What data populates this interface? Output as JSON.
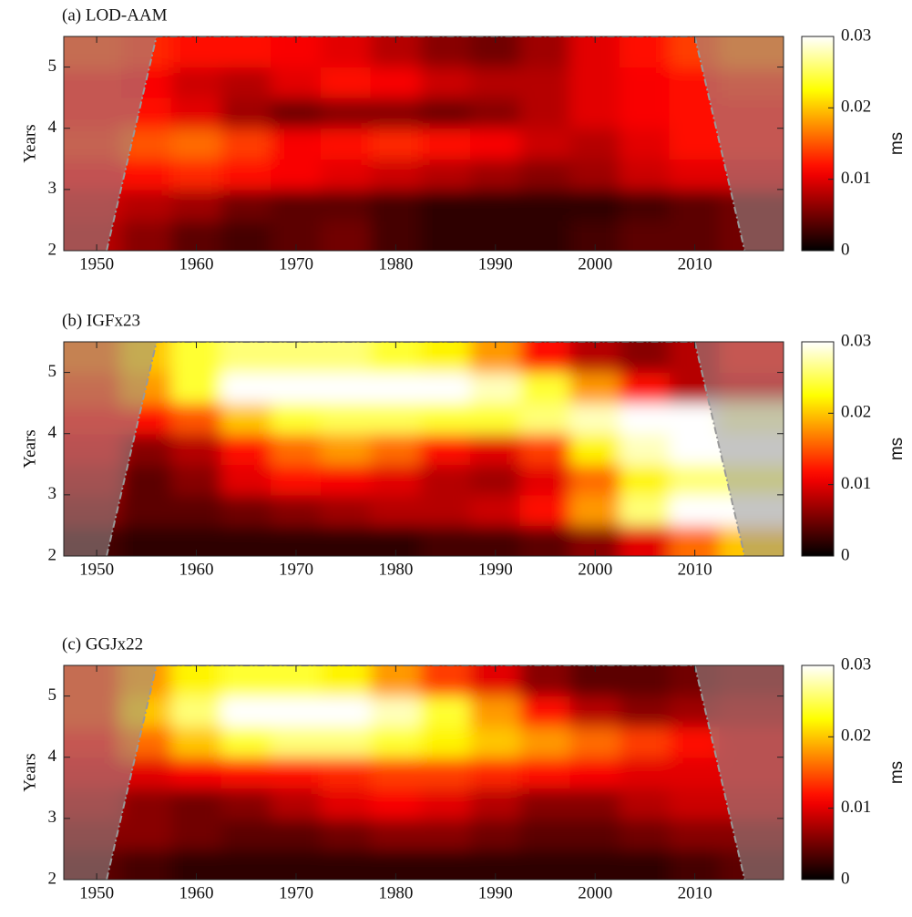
{
  "chart_data": [
    {
      "type": "heatmap",
      "title": "(a) LOD-AAM",
      "y_label": "Years",
      "colormap": "hot",
      "x": [
        1950,
        1955,
        1960,
        1965,
        1970,
        1975,
        1980,
        1985,
        1990,
        1995,
        2000,
        2005,
        2010,
        2015
      ],
      "y": [
        2.25,
        2.75,
        3.25,
        3.75,
        4.25,
        4.75,
        5.25
      ],
      "z": [
        [
          0.008,
          0.006,
          0.004,
          0.003,
          0.004,
          0.005,
          0.003,
          0.002,
          0.002,
          0.002,
          0.003,
          0.004,
          0.004,
          0.005
        ],
        [
          0.009,
          0.008,
          0.007,
          0.005,
          0.004,
          0.004,
          0.003,
          0.002,
          0.002,
          0.002,
          0.002,
          0.003,
          0.004,
          0.005
        ],
        [
          0.011,
          0.012,
          0.013,
          0.012,
          0.011,
          0.01,
          0.009,
          0.008,
          0.007,
          0.006,
          0.007,
          0.009,
          0.01,
          0.01
        ],
        [
          0.013,
          0.015,
          0.016,
          0.014,
          0.011,
          0.012,
          0.013,
          0.012,
          0.011,
          0.009,
          0.008,
          0.01,
          0.012,
          0.012
        ],
        [
          0.012,
          0.012,
          0.01,
          0.007,
          0.005,
          0.006,
          0.006,
          0.005,
          0.006,
          0.008,
          0.01,
          0.011,
          0.012,
          0.012
        ],
        [
          0.012,
          0.011,
          0.009,
          0.008,
          0.01,
          0.012,
          0.011,
          0.009,
          0.008,
          0.008,
          0.01,
          0.011,
          0.012,
          0.013
        ],
        [
          0.014,
          0.013,
          0.012,
          0.012,
          0.011,
          0.01,
          0.008,
          0.006,
          0.005,
          0.007,
          0.01,
          0.012,
          0.014,
          0.016
        ]
      ],
      "coi": {
        "x": [
          1951,
          1956,
          2010,
          2015
        ],
        "y": [
          2,
          5.5,
          5.5,
          2
        ]
      },
      "xlim": [
        1946.7,
        2018.9
      ],
      "xticks": [
        1950,
        1960,
        1970,
        1980,
        1990,
        2000,
        2010
      ],
      "ylim": [
        2,
        5.5
      ],
      "yticks": [
        2,
        3,
        4,
        5
      ],
      "zlim": [
        0,
        0.03
      ],
      "zticks": [
        0,
        0.01,
        0.02,
        0.03
      ],
      "zlabel": "ms"
    },
    {
      "type": "heatmap",
      "title": "(b) IGFx23",
      "y_label": "Years",
      "colormap": "hot",
      "x": [
        1950,
        1955,
        1960,
        1965,
        1970,
        1975,
        1980,
        1985,
        1990,
        1995,
        2000,
        2005,
        2010,
        2015
      ],
      "y": [
        2.25,
        2.75,
        3.25,
        3.75,
        4.25,
        4.75,
        5.25
      ],
      "z": [
        [
          0.003,
          0.002,
          0.002,
          0.002,
          0.002,
          0.002,
          0.002,
          0.003,
          0.003,
          0.004,
          0.006,
          0.01,
          0.016,
          0.02
        ],
        [
          0.006,
          0.004,
          0.004,
          0.005,
          0.006,
          0.007,
          0.008,
          0.008,
          0.009,
          0.012,
          0.018,
          0.026,
          0.03,
          0.03
        ],
        [
          0.008,
          0.004,
          0.006,
          0.01,
          0.012,
          0.011,
          0.01,
          0.008,
          0.007,
          0.01,
          0.016,
          0.022,
          0.026,
          0.026
        ],
        [
          0.01,
          0.006,
          0.008,
          0.012,
          0.016,
          0.018,
          0.016,
          0.012,
          0.01,
          0.014,
          0.022,
          0.028,
          0.03,
          0.03
        ],
        [
          0.012,
          0.012,
          0.015,
          0.02,
          0.024,
          0.025,
          0.025,
          0.024,
          0.024,
          0.026,
          0.028,
          0.03,
          0.03,
          0.028
        ],
        [
          0.014,
          0.018,
          0.024,
          0.03,
          0.03,
          0.03,
          0.03,
          0.03,
          0.028,
          0.024,
          0.018,
          0.012,
          0.008,
          0.01
        ],
        [
          0.016,
          0.02,
          0.024,
          0.026,
          0.026,
          0.026,
          0.024,
          0.022,
          0.018,
          0.012,
          0.008,
          0.006,
          0.008,
          0.012
        ]
      ],
      "coi": {
        "x": [
          1951,
          1956,
          2010,
          2015
        ],
        "y": [
          2,
          5.5,
          5.5,
          2
        ]
      },
      "xlim": [
        1946.7,
        2018.9
      ],
      "xticks": [
        1950,
        1960,
        1970,
        1980,
        1990,
        2000,
        2010
      ],
      "ylim": [
        2,
        5.5
      ],
      "yticks": [
        2,
        3,
        4,
        5
      ],
      "zlim": [
        0,
        0.03
      ],
      "zticks": [
        0,
        0.01,
        0.02,
        0.03
      ],
      "zlabel": "ms"
    },
    {
      "type": "heatmap",
      "title": "(c) GGJx22",
      "y_label": "Years",
      "colormap": "hot",
      "x": [
        1950,
        1955,
        1960,
        1965,
        1970,
        1975,
        1980,
        1985,
        1990,
        1995,
        2000,
        2005,
        2010,
        2015
      ],
      "y": [
        2.25,
        2.75,
        3.25,
        3.75,
        4.25,
        4.75,
        5.25
      ],
      "z": [
        [
          0.004,
          0.003,
          0.002,
          0.002,
          0.002,
          0.002,
          0.002,
          0.002,
          0.002,
          0.002,
          0.002,
          0.002,
          0.003,
          0.004
        ],
        [
          0.006,
          0.006,
          0.005,
          0.004,
          0.004,
          0.005,
          0.006,
          0.006,
          0.005,
          0.004,
          0.004,
          0.005,
          0.006,
          0.006
        ],
        [
          0.008,
          0.006,
          0.005,
          0.006,
          0.008,
          0.01,
          0.011,
          0.01,
          0.008,
          0.006,
          0.006,
          0.008,
          0.009,
          0.009
        ],
        [
          0.01,
          0.01,
          0.011,
          0.012,
          0.012,
          0.013,
          0.014,
          0.014,
          0.013,
          0.012,
          0.011,
          0.01,
          0.01,
          0.01
        ],
        [
          0.012,
          0.016,
          0.02,
          0.024,
          0.026,
          0.026,
          0.024,
          0.022,
          0.02,
          0.018,
          0.016,
          0.014,
          0.012,
          0.01
        ],
        [
          0.014,
          0.02,
          0.026,
          0.03,
          0.03,
          0.03,
          0.028,
          0.024,
          0.018,
          0.012,
          0.008,
          0.006,
          0.007,
          0.008
        ],
        [
          0.014,
          0.018,
          0.022,
          0.024,
          0.024,
          0.022,
          0.018,
          0.014,
          0.01,
          0.006,
          0.004,
          0.004,
          0.005,
          0.006
        ]
      ],
      "coi": {
        "x": [
          1951,
          1956,
          2010,
          2015
        ],
        "y": [
          2,
          5.5,
          5.5,
          2
        ]
      },
      "xlim": [
        1946.7,
        2018.9
      ],
      "xticks": [
        1950,
        1960,
        1970,
        1980,
        1990,
        2000,
        2010
      ],
      "ylim": [
        2,
        5.5
      ],
      "yticks": [
        2,
        3,
        4,
        5
      ],
      "zlim": [
        0,
        0.03
      ],
      "zticks": [
        0,
        0.01,
        0.02,
        0.03
      ],
      "zlabel": "ms"
    }
  ]
}
